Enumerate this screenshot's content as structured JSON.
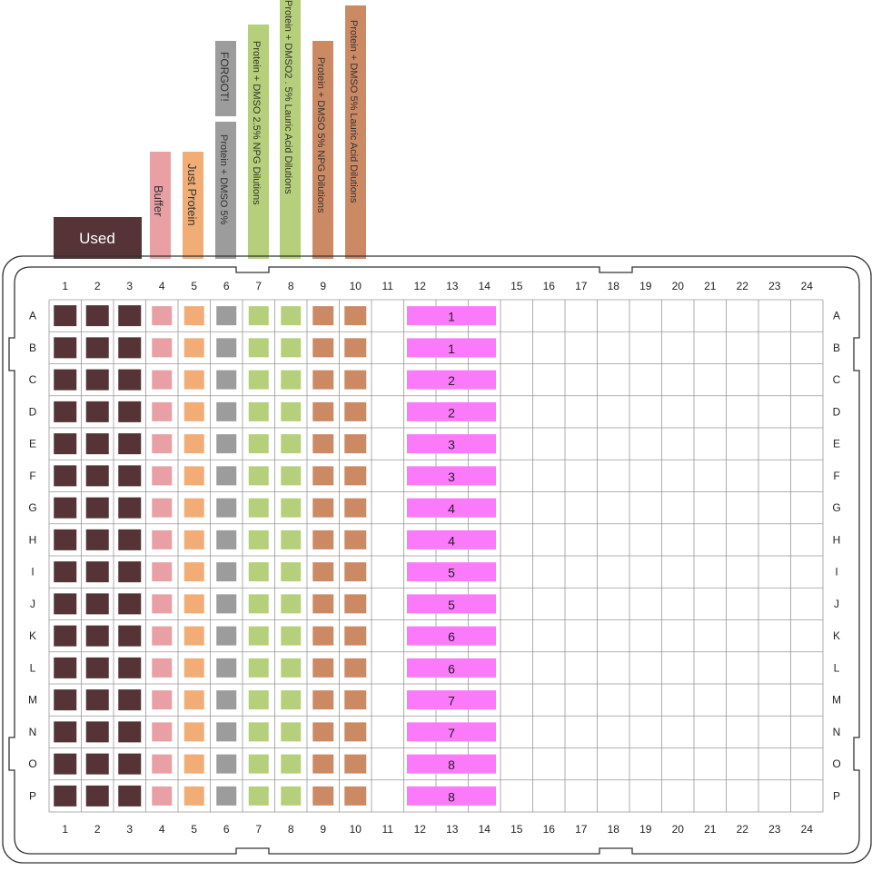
{
  "plate": {
    "columns": [
      "1",
      "2",
      "3",
      "4",
      "5",
      "6",
      "7",
      "8",
      "9",
      "10",
      "11",
      "12",
      "13",
      "14",
      "15",
      "16",
      "17",
      "18",
      "19",
      "20",
      "21",
      "22",
      "23",
      "24"
    ],
    "rows": [
      "A",
      "B",
      "C",
      "D",
      "E",
      "F",
      "G",
      "H",
      "I",
      "J",
      "K",
      "L",
      "M",
      "N",
      "O",
      "P"
    ]
  },
  "colors": {
    "used": "#553336",
    "buffer": "#e8a0a4",
    "just_protein": "#f2ad76",
    "dmso5": "#9c9c9c",
    "npg": "#b6cf7a",
    "lauric25": "#b6cf7a",
    "npg5": "#cc8a64",
    "lauric5": "#cc8a64",
    "dilution": "#fb7afa",
    "plate_border": "#333333",
    "grid": "#999999"
  },
  "labels": {
    "used": "Used",
    "buffer": "Buffer",
    "just_protein": "Just Protein",
    "dmso5": "Protein + DMSO 5%",
    "forgot": "FORGOT!",
    "npg25": "Protein + DMSO 2.5% NPG Dilutions",
    "lauric25": "Protein + DMSO2 . 5% Lauric Acid Dilutions",
    "npg5": "Protein + DMSO 5% NPG Dilutions",
    "lauric5": "Protein + DMSO 5% Lauric Acid Dilutions"
  },
  "dilution_numbers": [
    "1",
    "1",
    "2",
    "2",
    "3",
    "3",
    "4",
    "4",
    "5",
    "5",
    "6",
    "6",
    "7",
    "7",
    "8",
    "8"
  ],
  "column_colors": [
    "used",
    "used",
    "used",
    "buffer",
    "just_protein",
    "dmso5",
    "npg",
    "lauric25",
    "npg5",
    "lauric5"
  ]
}
